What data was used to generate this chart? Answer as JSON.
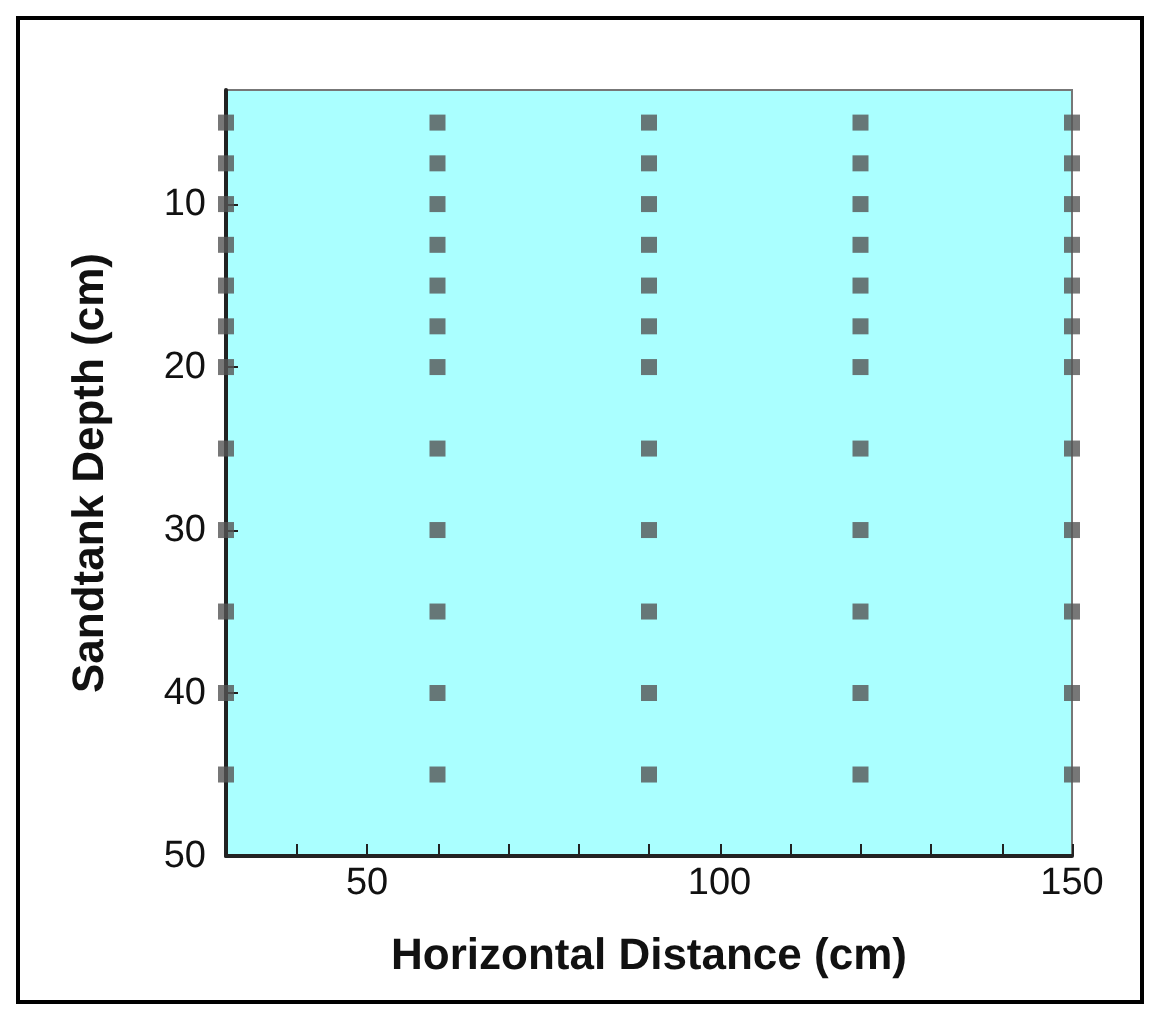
{
  "chart_data": {
    "type": "scatter",
    "xlabel": "Horizontal Distance (cm)",
    "ylabel": "Sandtank Depth (cm)",
    "xlim": [
      30,
      150
    ],
    "ylim": [
      50,
      3
    ],
    "xticks": [
      {
        "value": 40,
        "label": null
      },
      50,
      {
        "value": 60,
        "label": null
      },
      {
        "value": 70,
        "label": null
      },
      {
        "value": 80,
        "label": null
      },
      {
        "value": 90,
        "label": null
      },
      100,
      {
        "value": 110,
        "label": null
      },
      {
        "value": 120,
        "label": null
      },
      {
        "value": 130,
        "label": null
      },
      {
        "value": 140,
        "label": null
      },
      150
    ],
    "yticks": [
      10,
      20,
      30,
      40,
      50
    ],
    "grid": false,
    "marker": "square",
    "series": [
      {
        "color": "#555555",
        "x": [
          30,
          30,
          30,
          30,
          30,
          30,
          30,
          30,
          30,
          30,
          30,
          30,
          60,
          60,
          60,
          60,
          60,
          60,
          60,
          60,
          60,
          60,
          60,
          60,
          90,
          90,
          90,
          90,
          90,
          90,
          90,
          90,
          90,
          90,
          90,
          90,
          120,
          120,
          120,
          120,
          120,
          120,
          120,
          120,
          120,
          120,
          120,
          120,
          150,
          150,
          150,
          150,
          150,
          150,
          150,
          150,
          150,
          150,
          150,
          150
        ],
        "values": [
          5,
          7.5,
          10,
          12.5,
          15,
          17.5,
          20,
          25,
          30,
          35,
          40,
          45,
          5,
          7.5,
          10,
          12.5,
          15,
          17.5,
          20,
          25,
          30,
          35,
          40,
          45,
          5,
          7.5,
          10,
          12.5,
          15,
          17.5,
          20,
          25,
          30,
          35,
          40,
          45,
          5,
          7.5,
          10,
          12.5,
          15,
          17.5,
          20,
          25,
          30,
          35,
          40,
          45,
          5,
          7.5,
          10,
          12.5,
          15,
          17.5,
          20,
          25,
          30,
          35,
          40,
          45
        ]
      }
    ]
  }
}
